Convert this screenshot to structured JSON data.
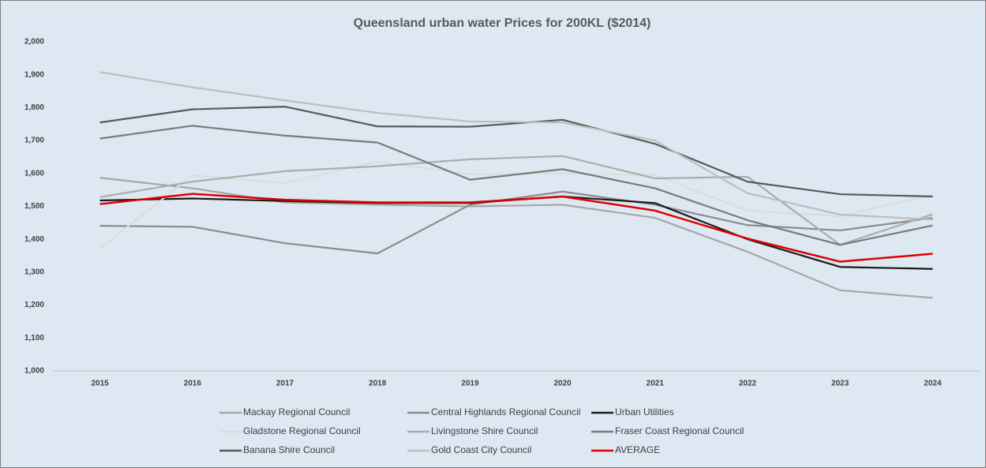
{
  "chart_data": {
    "type": "line",
    "title": "Queensland urban water Prices for 200KL ($2014)",
    "categories": [
      "2015",
      "2016",
      "2017",
      "2018",
      "2019",
      "2020",
      "2021",
      "2022",
      "2023",
      "2024"
    ],
    "ylim": [
      1000,
      2000
    ],
    "yticks": [
      {
        "value": 1000,
        "label": "1,000"
      },
      {
        "value": 1100,
        "label": "1,100"
      },
      {
        "value": 1200,
        "label": "1,200"
      },
      {
        "value": 1300,
        "label": "1,300"
      },
      {
        "value": 1400,
        "label": "1,400"
      },
      {
        "value": 1500,
        "label": "1,500"
      },
      {
        "value": 1600,
        "label": "1,600"
      },
      {
        "value": 1700,
        "label": "1,700"
      },
      {
        "value": 1800,
        "label": "1,800"
      },
      {
        "value": 1900,
        "label": "1,900"
      },
      {
        "value": 2000,
        "label": "2,000"
      }
    ],
    "series": [
      {
        "name": "Mackay Regional Council",
        "color": "#a6a6a6",
        "values": [
          1587,
          1555,
          1512,
          1505,
          1500,
          1505,
          1465,
          1362,
          1245,
          1222
        ]
      },
      {
        "name": "Central Highlands Regional Council",
        "color": "#8c8c8c",
        "values": [
          1441,
          1438,
          1388,
          1357,
          1505,
          1545,
          1505,
          1443,
          1427,
          1465
        ]
      },
      {
        "name": "Urban Utilities",
        "color": "#1a1a1a",
        "values": [
          1518,
          1524,
          1516,
          1510,
          1510,
          1530,
          1510,
          1400,
          1316,
          1310
        ]
      },
      {
        "name": "Gladstone Regional Council",
        "color": "#dcdcdc",
        "values": [
          1372,
          1594,
          1571,
          1636,
          1597,
          1600,
          1595,
          1487,
          1470,
          1535
        ]
      },
      {
        "name": "Livingstone Shire Council",
        "color": "#ababab",
        "values": [
          1528,
          1575,
          1607,
          1622,
          1643,
          1653,
          1585,
          1590,
          1383,
          1476
        ]
      },
      {
        "name": "Fraser Coast Regional Council",
        "color": "#7a7a7a",
        "values": [
          1706,
          1745,
          1715,
          1694,
          1581,
          1613,
          1555,
          1458,
          1383,
          1442
        ]
      },
      {
        "name": "Banana Shire Council",
        "color": "#595959",
        "values": [
          1755,
          1795,
          1803,
          1743,
          1742,
          1763,
          1690,
          1575,
          1537,
          1530
        ]
      },
      {
        "name": "Gold Coast City Council",
        "color": "#bdbdbd",
        "values": [
          1908,
          1862,
          1822,
          1784,
          1758,
          1755,
          1700,
          1540,
          1475,
          1460
        ]
      },
      {
        "name": "AVERAGE",
        "color": "#e00000",
        "values": [
          1507,
          1538,
          1520,
          1512,
          1512,
          1530,
          1487,
          1402,
          1332,
          1356
        ]
      }
    ]
  }
}
